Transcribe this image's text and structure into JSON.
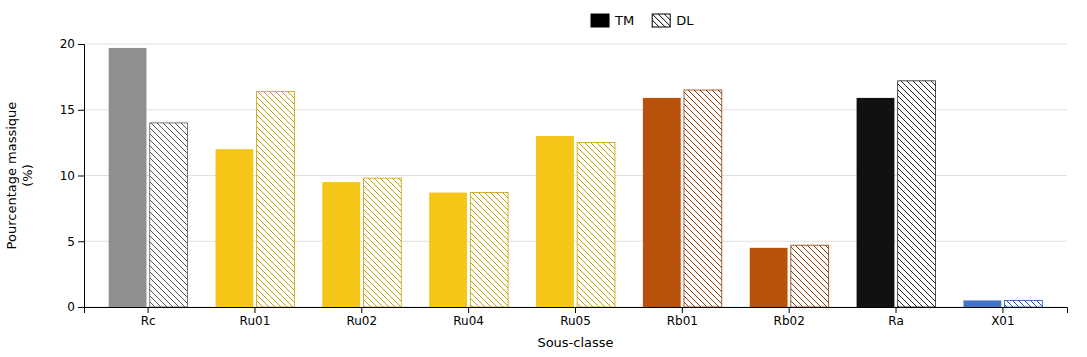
{
  "chart_data": {
    "type": "bar",
    "xlabel": "Sous-classe",
    "ylabel": "Pourcentage massique\n(%)",
    "categories": [
      "Rc",
      "Ru01",
      "Ru02",
      "Ru04",
      "Ru05",
      "Rb01",
      "Rb02",
      "Ra",
      "X01"
    ],
    "series": [
      {
        "name": "TM",
        "color": "#000000",
        "colors": [
          "#909090",
          "#F5C518",
          "#F5C518",
          "#F5C518",
          "#F5C518",
          "#B8520A",
          "#B8520A",
          "#111111",
          "#4472C4"
        ],
        "values": [
          19.7,
          12.0,
          9.5,
          8.7,
          13.0,
          15.9,
          4.5,
          15.9,
          0.5
        ]
      },
      {
        "name": "DL",
        "color": "#000000",
        "colors": [
          "#555555",
          "#C8A000",
          "#C8A000",
          "#C8A000",
          "#C8A000",
          "#8B3A00",
          "#8B3A00",
          "#222222",
          "#2255AA"
        ],
        "values": [
          14.0,
          16.4,
          9.8,
          8.7,
          12.5,
          16.5,
          4.7,
          17.2,
          0.5
        ]
      }
    ],
    "ylim": [
      0,
      20
    ],
    "yticks": [
      0,
      5,
      10,
      15,
      20
    ],
    "grid": true,
    "legend": "top"
  }
}
